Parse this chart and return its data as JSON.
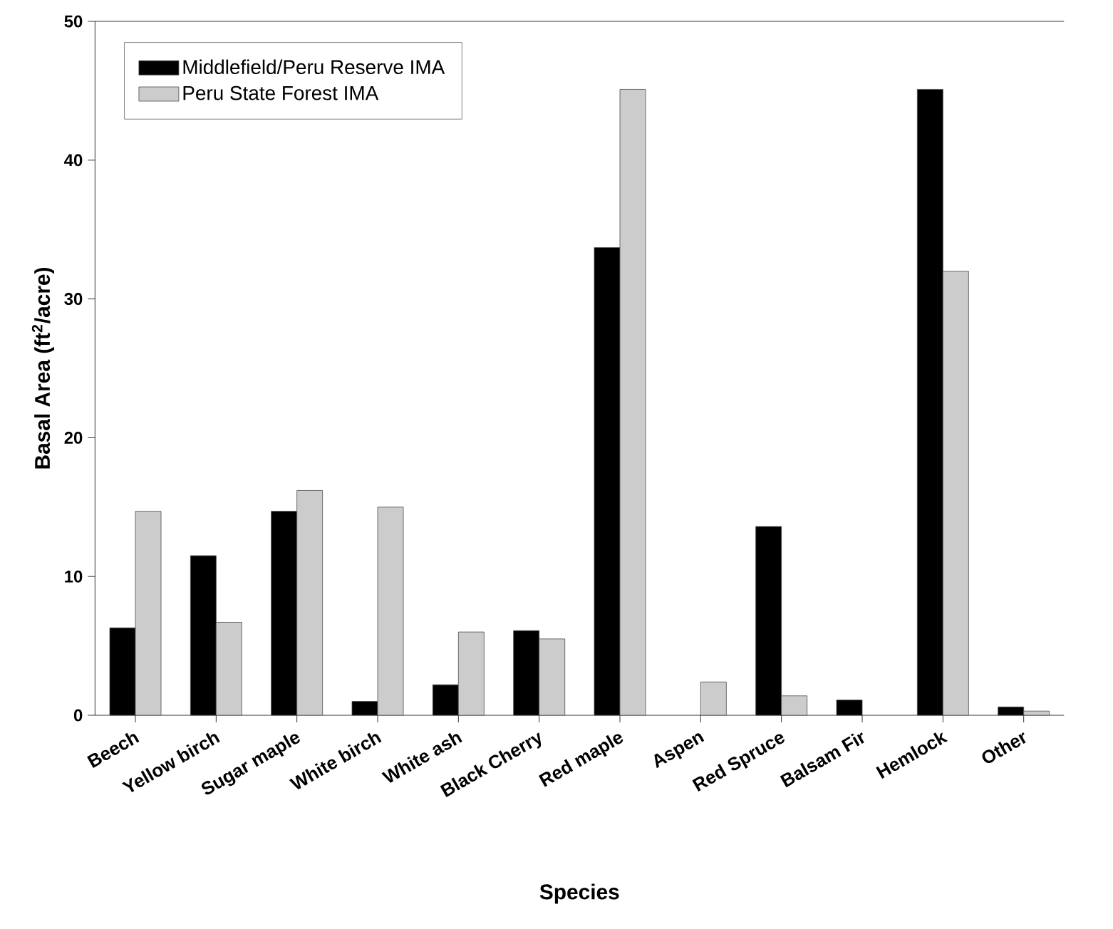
{
  "chart_data": {
    "type": "bar",
    "xlabel": "Species",
    "ylabel": "Basal Area (ft$^{2}$/acre)",
    "categories": [
      "Beech",
      "Yellow birch",
      "Sugar maple",
      "White birch",
      "White ash",
      "Black Cherry",
      "Red maple",
      "Aspen",
      "Red Spruce",
      "Balsam Fir",
      "Hemlock",
      "Other"
    ],
    "series": [
      {
        "name": "Middlefield/Peru Reserve IMA",
        "color": "#000000",
        "values": [
          6.3,
          11.5,
          14.7,
          1.0,
          2.2,
          6.1,
          33.7,
          null,
          13.6,
          1.1,
          45.1,
          0.6
        ]
      },
      {
        "name": "Peru State Forest IMA",
        "color": "#cccccc",
        "values": [
          14.7,
          6.7,
          16.2,
          15.0,
          6.0,
          5.5,
          45.1,
          2.4,
          1.4,
          null,
          32.0,
          0.3
        ]
      }
    ],
    "ylim": [
      0,
      50
    ],
    "yticks": [
      0,
      10,
      20,
      30,
      40,
      50
    ],
    "legend": "top left"
  }
}
